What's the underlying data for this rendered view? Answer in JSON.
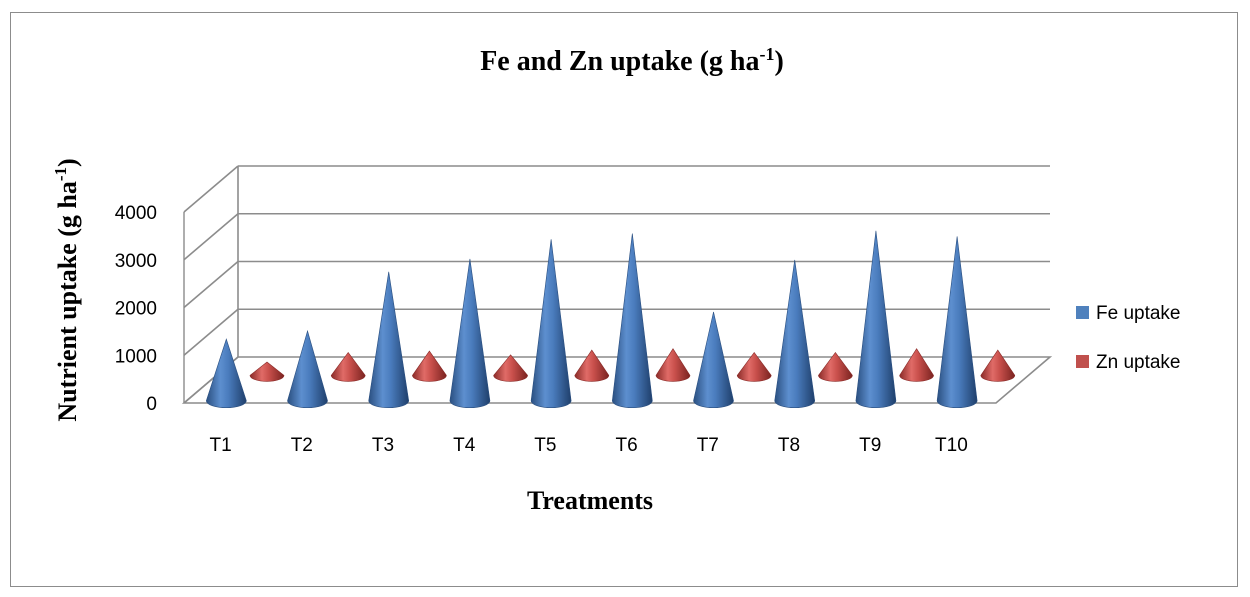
{
  "chart_data": {
    "type": "bar",
    "title": "Fe and Zn uptake (g ha",
    "title_sup": "-1",
    "title_close": ")",
    "xlabel": "Treatments",
    "ylabel": "Nutrient uptake (g ha",
    "ylabel_sup": "-1",
    "ylabel_close": ")",
    "categories": [
      "T1",
      "T2",
      "T3",
      "T4",
      "T5",
      "T6",
      "T7",
      "T8",
      "T9",
      "T10"
    ],
    "series": [
      {
        "name": "Fe uptake",
        "color": "#4f81bd",
        "values": [
          1290,
          1460,
          2700,
          2970,
          3380,
          3500,
          1860,
          2950,
          3560,
          3440
        ]
      },
      {
        "name": "Zn uptake",
        "color": "#c0504d",
        "values": [
          280,
          480,
          510,
          430,
          530,
          560,
          480,
          480,
          560,
          530
        ]
      }
    ],
    "y_ticks": [
      "0",
      "1000",
      "2000",
      "3000",
      "4000"
    ],
    "ylim": [
      0,
      4000
    ],
    "legend_position": "right",
    "grid": true,
    "style": "3d-cone"
  }
}
